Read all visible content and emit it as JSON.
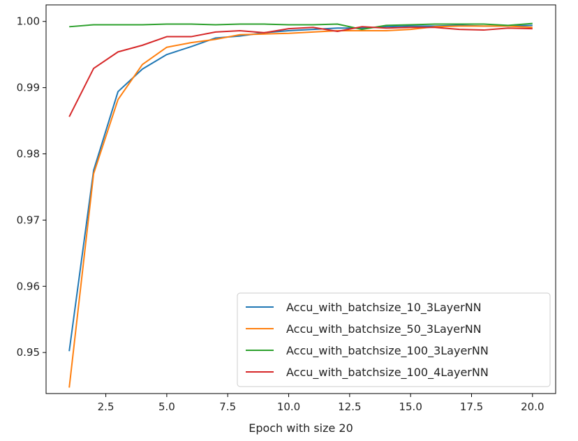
{
  "chart_data": {
    "type": "line",
    "title": "",
    "xlabel": "Epoch with size 20",
    "ylabel": "",
    "xlim": [
      0.05,
      20.95
    ],
    "ylim": [
      0.9438,
      1.0025
    ],
    "xticks": [
      2.5,
      5.0,
      7.5,
      10.0,
      12.5,
      15.0,
      17.5,
      20.0
    ],
    "xtick_labels": [
      "2.5",
      "5.0",
      "7.5",
      "10.0",
      "12.5",
      "15.0",
      "17.5",
      "20.0"
    ],
    "yticks": [
      0.95,
      0.96,
      0.97,
      0.98,
      0.99,
      1.0
    ],
    "ytick_labels": [
      "0.95",
      "0.96",
      "0.97",
      "0.98",
      "0.99",
      "1.00"
    ],
    "grid": false,
    "legend_position": "lower-right",
    "x": [
      1,
      2,
      3,
      4,
      5,
      6,
      7,
      8,
      9,
      10,
      11,
      12,
      13,
      14,
      15,
      16,
      17,
      18,
      19,
      20
    ],
    "series": [
      {
        "name": "Accu_with_batchsize_10_3LayerNN",
        "color": "#1f77b4",
        "values": [
          0.9502,
          0.9775,
          0.9894,
          0.9928,
          0.995,
          0.9962,
          0.9975,
          0.9978,
          0.9983,
          0.9986,
          0.9988,
          0.999,
          0.999,
          0.9992,
          0.9993,
          0.9993,
          0.9994,
          0.9993,
          0.9993,
          0.9994
        ]
      },
      {
        "name": "Accu_with_batchsize_50_3LayerNN",
        "color": "#ff7f0e",
        "values": [
          0.9447,
          0.977,
          0.9882,
          0.9935,
          0.9961,
          0.9968,
          0.9973,
          0.998,
          0.9981,
          0.9982,
          0.9984,
          0.9986,
          0.9986,
          0.9986,
          0.9988,
          0.9992,
          0.9993,
          0.9993,
          0.9993,
          0.9991
        ]
      },
      {
        "name": "Accu_with_batchsize_100_3LayerNN",
        "color": "#2ca02c",
        "values": [
          0.9992,
          0.9995,
          0.9995,
          0.9995,
          0.9996,
          0.9996,
          0.9995,
          0.9996,
          0.9996,
          0.9995,
          0.9995,
          0.9996,
          0.9988,
          0.9994,
          0.9995,
          0.9996,
          0.9996,
          0.9996,
          0.9994,
          0.9997
        ]
      },
      {
        "name": "Accu_with_batchsize_100_4LayerNN",
        "color": "#d62728",
        "values": [
          0.9856,
          0.9929,
          0.9954,
          0.9964,
          0.9977,
          0.9977,
          0.9984,
          0.9986,
          0.9983,
          0.9989,
          0.9991,
          0.9985,
          0.9992,
          0.999,
          0.9991,
          0.9991,
          0.9988,
          0.9987,
          0.999,
          0.9989
        ]
      }
    ]
  }
}
